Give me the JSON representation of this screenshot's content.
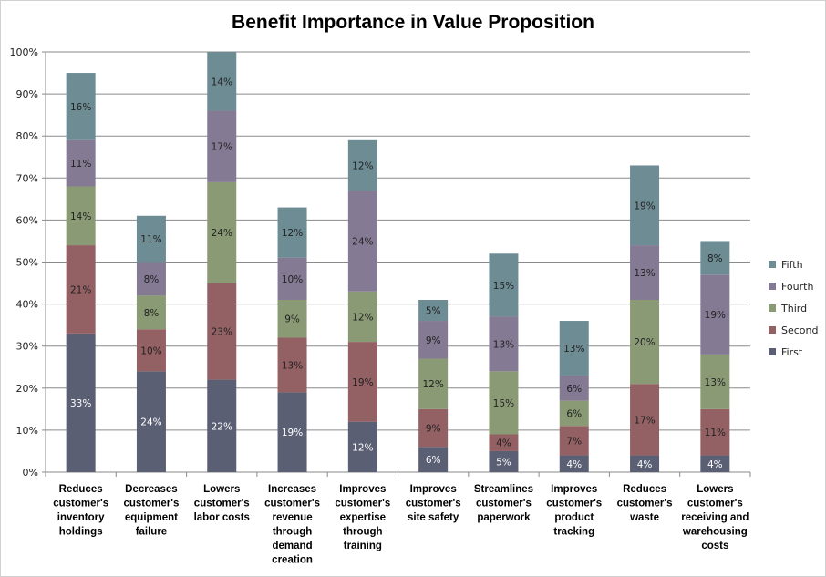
{
  "chart_data": {
    "type": "bar",
    "stacked": true,
    "title": "Benefit Importance in Value Proposition",
    "xlabel": "",
    "ylabel": "",
    "ylim": [
      0,
      100
    ],
    "yticks": [
      "0%",
      "10%",
      "20%",
      "30%",
      "40%",
      "50%",
      "60%",
      "70%",
      "80%",
      "90%",
      "100%"
    ],
    "grid": true,
    "legend_position": "right",
    "categories": [
      [
        "Reduces",
        "customer's",
        "inventory",
        "holdings"
      ],
      [
        "Decreases",
        "customer's",
        "equipment",
        "failure"
      ],
      [
        "Lowers",
        "customer's",
        "labor costs"
      ],
      [
        "Increases",
        "customer's",
        "revenue",
        "through",
        "demand",
        "creation"
      ],
      [
        "Improves",
        "customer's",
        "expertise",
        "through",
        "training"
      ],
      [
        "Improves",
        "customer's",
        "site safety"
      ],
      [
        "Streamlines",
        "customer's",
        "paperwork"
      ],
      [
        "Improves",
        "customer's",
        "product",
        "tracking"
      ],
      [
        "Reduces",
        "customer's",
        "waste"
      ],
      [
        "Lowers",
        "customer's",
        "receiving and",
        "warehousing",
        "costs"
      ]
    ],
    "series": [
      {
        "name": "First",
        "color": "#5a5f74",
        "values": [
          33,
          24,
          22,
          19,
          12,
          6,
          5,
          4,
          4,
          4
        ],
        "labels": [
          "33%",
          "24%",
          "22%",
          "19%",
          "12%",
          "6%",
          "5%",
          "4%",
          "4%",
          "4%"
        ]
      },
      {
        "name": "Second",
        "color": "#936064",
        "values": [
          21,
          10,
          23,
          13,
          19,
          9,
          4,
          7,
          17,
          11
        ],
        "labels": [
          "21%",
          "10%",
          "23%",
          "13%",
          "19%",
          "9%",
          "4%",
          "7%",
          "17%",
          "11%"
        ]
      },
      {
        "name": "Third",
        "color": "#8a9a74",
        "values": [
          14,
          8,
          24,
          9,
          12,
          12,
          15,
          6,
          20,
          13
        ],
        "labels": [
          "14%",
          "8%",
          "24%",
          "9%",
          "12%",
          "12%",
          "15%",
          "6%",
          "20%",
          "13%"
        ]
      },
      {
        "name": "Fourth",
        "color": "#857a94",
        "values": [
          11,
          8,
          17,
          10,
          24,
          9,
          13,
          6,
          13,
          19
        ],
        "labels": [
          "11%",
          "8%",
          "17%",
          "10%",
          "24%",
          "9%",
          "13%",
          "6%",
          "13%",
          "19%"
        ]
      },
      {
        "name": "Fifth",
        "color": "#6d8c94",
        "values": [
          16,
          11,
          14,
          12,
          12,
          5,
          15,
          13,
          19,
          8
        ],
        "labels": [
          "16%",
          "11%",
          "14%",
          "12%",
          "12%",
          "5%",
          "15%",
          "13%",
          "19%",
          "8%"
        ]
      }
    ],
    "label_colors": {
      "First": "#ffffff",
      "Second": "#222222",
      "Third": "#222222",
      "Fourth": "#222222",
      "Fifth": "#222222"
    },
    "gridline_color": "#8a8a8a",
    "axis_color": "#8a8a8a"
  }
}
